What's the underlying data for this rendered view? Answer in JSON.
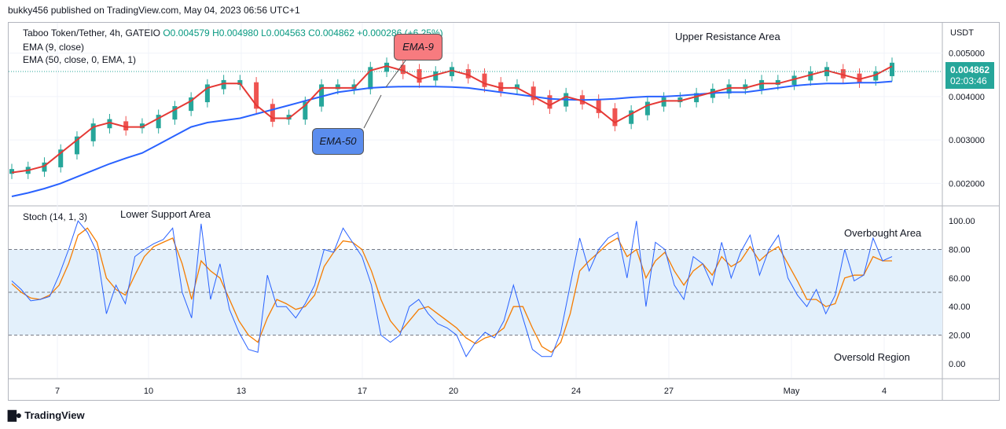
{
  "publisher": "bukky456 published on TradingView.com, May 04, 2023 06:56 UTC+1",
  "footer_brand": "TradingView",
  "legend": {
    "symbol": "Taboo Token/Tether, 4h, GATEIO",
    "ohlc": "O0.004579 H0.004980 L0.004563 C0.004862 +0.000286 (+6.25%)",
    "ema9": "EMA (9, close)",
    "ema50": "EMA (50, close, 0, EMA, 1)",
    "stoch": "Stoch (14, 1, 3)"
  },
  "annotations": {
    "upper_resistance": "Upper Resistance Area",
    "lower_support": "Lower Support Area",
    "overbought": "Overbought Area",
    "oversold": "Oversold Region",
    "ema9_label": "EMA-9",
    "ema50_label": "EMA-50"
  },
  "price_tag": {
    "price": "0.004862",
    "countdown": "02:03:46"
  },
  "colors": {
    "up": "#26a69a",
    "down": "#ef5350",
    "ema9": "#e53935",
    "ema50": "#2962ff",
    "k": "#2962ff",
    "d": "#f57c00",
    "band": "#e3f0fb",
    "ema9_callout": "#f77b7f",
    "ema50_callout": "#5b8dee",
    "tag": "#26a69a"
  },
  "chart_data": [
    {
      "type": "line",
      "currency_axis": "USDT",
      "ylim": [
        0.0015,
        0.0057
      ],
      "price_ticks": [
        "0.005000",
        "0.004000",
        "0.003000",
        "0.002000"
      ],
      "price_tick_values": [
        0.005,
        0.004,
        0.003,
        0.002
      ],
      "x_labels": [
        "7",
        "10",
        "13",
        "17",
        "20",
        "24",
        "27",
        "May",
        "4"
      ],
      "series": [
        {
          "name": "EMA (9, close)",
          "values": [
            0.00225,
            0.0023,
            0.0024,
            0.0027,
            0.003,
            0.0033,
            0.0034,
            0.0033,
            0.0033,
            0.0035,
            0.0037,
            0.0039,
            0.0042,
            0.0043,
            0.0043,
            0.0038,
            0.0035,
            0.0035,
            0.0038,
            0.0042,
            0.0042,
            0.0042,
            0.0046,
            0.0047,
            0.0046,
            0.0044,
            0.0045,
            0.0046,
            0.0045,
            0.0043,
            0.0042,
            0.0042,
            0.004,
            0.0038,
            0.004,
            0.0039,
            0.0037,
            0.0034,
            0.0036,
            0.0038,
            0.0039,
            0.0039,
            0.004,
            0.0041,
            0.0042,
            0.0042,
            0.0043,
            0.0043,
            0.0044,
            0.0045,
            0.0046,
            0.0045,
            0.0044,
            0.0045,
            0.0047
          ]
        },
        {
          "name": "EMA (50, close, 0, EMA, 1)",
          "values": [
            0.0017,
            0.00178,
            0.00188,
            0.002,
            0.00215,
            0.0023,
            0.00245,
            0.00258,
            0.0027,
            0.0029,
            0.0031,
            0.0033,
            0.0034,
            0.00345,
            0.0035,
            0.0036,
            0.0037,
            0.0038,
            0.0039,
            0.004,
            0.0041,
            0.00415,
            0.0042,
            0.00422,
            0.00423,
            0.00423,
            0.00423,
            0.00422,
            0.0042,
            0.00415,
            0.0041,
            0.00405,
            0.004,
            0.00395,
            0.00393,
            0.00392,
            0.00393,
            0.00395,
            0.00398,
            0.004,
            0.004,
            0.00402,
            0.00405,
            0.00408,
            0.0041,
            0.0041,
            0.00415,
            0.0042,
            0.00425,
            0.00428,
            0.0043,
            0.0043,
            0.00432,
            0.00432,
            0.00435
          ]
        }
      ]
    },
    {
      "type": "line",
      "ylim": [
        -10,
        110
      ],
      "ticks": [
        "100.00",
        "80.00",
        "60.00",
        "40.00",
        "20.00",
        "0.00"
      ],
      "tick_values": [
        100,
        80,
        60,
        40,
        20,
        0
      ],
      "levels": [
        80,
        50,
        20
      ],
      "series": [
        {
          "name": "K",
          "values": [
            58,
            52,
            44,
            45,
            47,
            62,
            80,
            100,
            92,
            78,
            35,
            55,
            42,
            75,
            80,
            84,
            87,
            95,
            50,
            32,
            98,
            45,
            70,
            38,
            22,
            10,
            8,
            62,
            40,
            40,
            32,
            42,
            55,
            80,
            78,
            95,
            85,
            75,
            55,
            20,
            15,
            20,
            40,
            45,
            35,
            28,
            25,
            20,
            5,
            15,
            22,
            18,
            30,
            55,
            32,
            10,
            5,
            5,
            22,
            55,
            88,
            65,
            80,
            88,
            92,
            60,
            100,
            40,
            85,
            80,
            55,
            45,
            75,
            70,
            55,
            85,
            60,
            78,
            90,
            62,
            80,
            90,
            60,
            48,
            40,
            52,
            35,
            48,
            80,
            58,
            62,
            88,
            72,
            75
          ]
        },
        {
          "name": "D",
          "values": [
            56,
            50,
            46,
            45,
            48,
            55,
            70,
            90,
            95,
            85,
            60,
            52,
            48,
            62,
            75,
            82,
            85,
            88,
            70,
            45,
            72,
            65,
            60,
            45,
            30,
            20,
            15,
            32,
            45,
            42,
            38,
            40,
            48,
            68,
            78,
            86,
            85,
            80,
            65,
            45,
            30,
            22,
            30,
            38,
            40,
            35,
            30,
            25,
            18,
            14,
            18,
            20,
            25,
            40,
            40,
            25,
            12,
            8,
            15,
            35,
            65,
            72,
            78,
            84,
            88,
            75,
            80,
            60,
            72,
            78,
            65,
            55,
            65,
            70,
            62,
            75,
            68,
            72,
            82,
            72,
            78,
            82,
            70,
            58,
            45,
            45,
            40,
            42,
            60,
            62,
            62,
            75,
            72,
            72
          ]
        }
      ]
    }
  ]
}
